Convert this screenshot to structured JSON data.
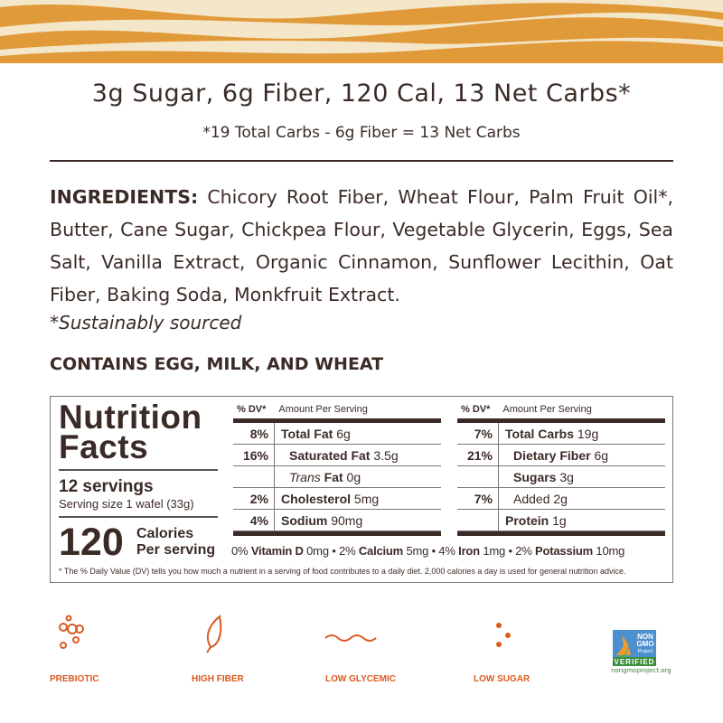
{
  "colors": {
    "band": "#e09a3a",
    "cream": "#f4e6c8",
    "text": "#3b2b26",
    "accent": "#d95a20"
  },
  "header": {
    "title": "3g Sugar, 6g Fiber, 120 Cal, 13 Net Carbs*",
    "subtitle": "*19 Total Carbs - 6g Fiber = 13 Net Carbs"
  },
  "ingredients": {
    "label": "INGREDIENTS:",
    "text": " Chicory Root Fiber, Wheat Flour, Palm Fruit Oil*, Butter, Cane Sugar, Chickpea Flour, Vegetable Glycerin, Eggs, Sea Salt, Vanilla Extract, Organic Cinnamon, Sunflower Lecithin, Oat Fiber, Baking Soda, Monkfruit Extract.",
    "note": "*Sustainably sourced",
    "contains": "CONTAINS EGG, MILK, AND WHEAT"
  },
  "nutrition": {
    "title1": "Nutrition",
    "title2": "Facts",
    "servings": "12 servings",
    "serving_size": "Serving size 1 wafel (33g)",
    "calories": "120",
    "cal_label": "Calories",
    "per_serving": "Per serving",
    "dv_header": "% DV*",
    "amount_header": "Amount Per Serving",
    "left": [
      {
        "pct": "8%",
        "name": "Total Fat",
        "amt": "6g"
      },
      {
        "pct": "16%",
        "name": "Saturated Fat",
        "amt": "3.5g"
      },
      {
        "pct": "",
        "name": "Trans",
        "name2": "Fat",
        "amt": "0g"
      },
      {
        "pct": "2%",
        "name": "Cholesterol",
        "amt": "5mg"
      },
      {
        "pct": "4%",
        "name": "Sodium",
        "amt": "90mg"
      }
    ],
    "right": [
      {
        "pct": "7%",
        "name": "Total Carbs",
        "amt": "19g"
      },
      {
        "pct": "21%",
        "name": "Dietary Fiber",
        "amt": "6g"
      },
      {
        "pct": "",
        "name": "Sugars",
        "amt": "3g"
      },
      {
        "pct": "7%",
        "name": "Added",
        "amt": "2g"
      },
      {
        "pct": "",
        "name": "Protein",
        "amt": "1g"
      }
    ],
    "vitamins": [
      {
        "pct": "0%",
        "name": "Vitamin D",
        "amt": "0mg"
      },
      {
        "pct": "2%",
        "name": "Calcium",
        "amt": "5mg"
      },
      {
        "pct": "4%",
        "name": "Iron",
        "amt": "1mg"
      },
      {
        "pct": "2%",
        "name": "Potassium",
        "amt": "10mg"
      }
    ],
    "footnote": "* The % Daily Value (DV) tells you how much a nutrient in a serving of food contributes to a daily diet. 2,000 calories a day is used for general nutrition advice."
  },
  "badges": [
    {
      "label": "PREBIOTIC",
      "icon": "molecule-icon"
    },
    {
      "label": "HIGH FIBER",
      "icon": "leaf-icon"
    },
    {
      "label": "LOW GLYCEMIC",
      "icon": "wave-icon"
    },
    {
      "label": "LOW SUGAR",
      "icon": "sugar-dots-icon"
    }
  ],
  "non_gmo": {
    "line1": "NON",
    "line2": "GMO",
    "line3": "Project",
    "line4": "VERIFIED",
    "url": "nongmoproject.org"
  }
}
